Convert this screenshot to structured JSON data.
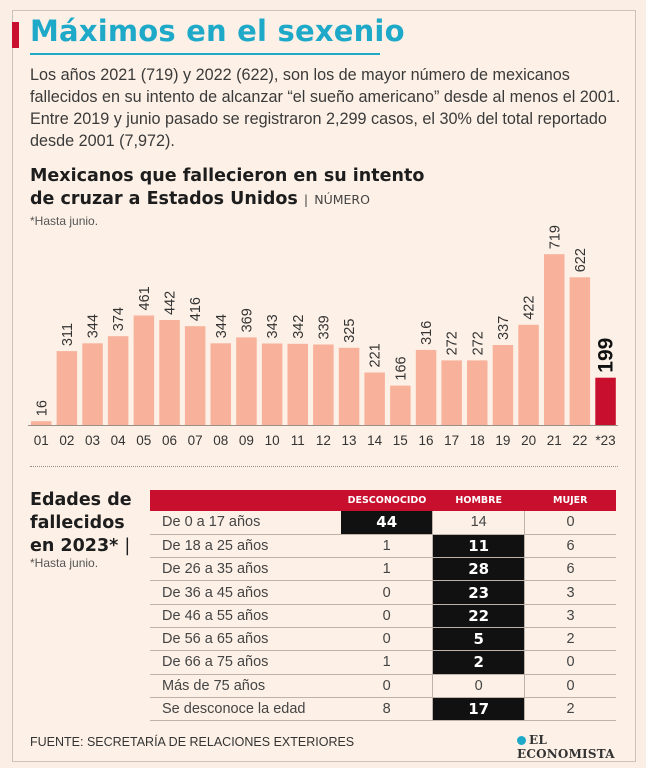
{
  "header": {
    "title": "Máximos en el sexenio",
    "intro": "Los años 2021 (719) y 2022 (622), son los de mayor número de mexicanos fallecidos en su intento de alcanzar “el sueño americano” desde al menos el 2001. Entre 2019 y junio pasado se registraron 2,299 casos, el 30% del total reportado desde 2001 (7,972)."
  },
  "chart_section": {
    "title_line1": "Mexicanos que fallecieron en su intento",
    "title_line2": "de cruzar a Estados Unidos",
    "separator": "|",
    "unit": "NÚMERO",
    "note": "*Hasta junio."
  },
  "chart_data": {
    "type": "bar",
    "categories": [
      "01",
      "02",
      "03",
      "04",
      "05",
      "06",
      "07",
      "08",
      "09",
      "10",
      "11",
      "12",
      "13",
      "14",
      "15",
      "16",
      "17",
      "18",
      "19",
      "20",
      "21",
      "22",
      "*23"
    ],
    "values": [
      16,
      311,
      344,
      374,
      461,
      442,
      416,
      344,
      369,
      343,
      342,
      339,
      325,
      221,
      166,
      316,
      272,
      272,
      337,
      422,
      719,
      622,
      199
    ],
    "highlight_index": 22,
    "ylim": [
      0,
      800
    ],
    "grid": false,
    "legend": "none",
    "colors": {
      "bar": "#f8b19a",
      "highlight": "#c8102e"
    }
  },
  "ages_section": {
    "title_line1": "Edades de",
    "title_line2": "fallecidos",
    "title_line3": "en 2023*",
    "separator": "|",
    "note": "*Hasta junio.",
    "columns": [
      "DESCONOCIDO",
      "HOMBRE",
      "MUJER"
    ],
    "rows": [
      {
        "label": "De 0 a 17 años",
        "values": [
          "44",
          "14",
          "0"
        ],
        "highlight": 0
      },
      {
        "label": "De 18 a 25 años",
        "values": [
          "1",
          "11",
          "6"
        ],
        "highlight": 1
      },
      {
        "label": "De 26 a 35 años",
        "values": [
          "1",
          "28",
          "6"
        ],
        "highlight": 1
      },
      {
        "label": "De 36 a 45 años",
        "values": [
          "0",
          "23",
          "3"
        ],
        "highlight": 1
      },
      {
        "label": "De 46 a 55 años",
        "values": [
          "0",
          "22",
          "3"
        ],
        "highlight": 1
      },
      {
        "label": "De 56 a 65 años",
        "values": [
          "0",
          "5",
          "2"
        ],
        "highlight": 1
      },
      {
        "label": "De 66 a 75 años",
        "values": [
          "1",
          "2",
          "0"
        ],
        "highlight": 1
      },
      {
        "label": "Más de 75 años",
        "values": [
          "0",
          "0",
          "0"
        ],
        "highlight": -1
      },
      {
        "label": "Se desconoce la edad",
        "values": [
          "8",
          "17",
          "2"
        ],
        "highlight": 1
      }
    ]
  },
  "footer": {
    "source": "FUENTE: SECRETARÍA DE RELACIONES EXTERIORES",
    "logo": "EL ECONOMISTA"
  },
  "colors": {
    "accent": "#c8102e",
    "title": "#1fa9c9",
    "bar": "#f8b19a"
  }
}
